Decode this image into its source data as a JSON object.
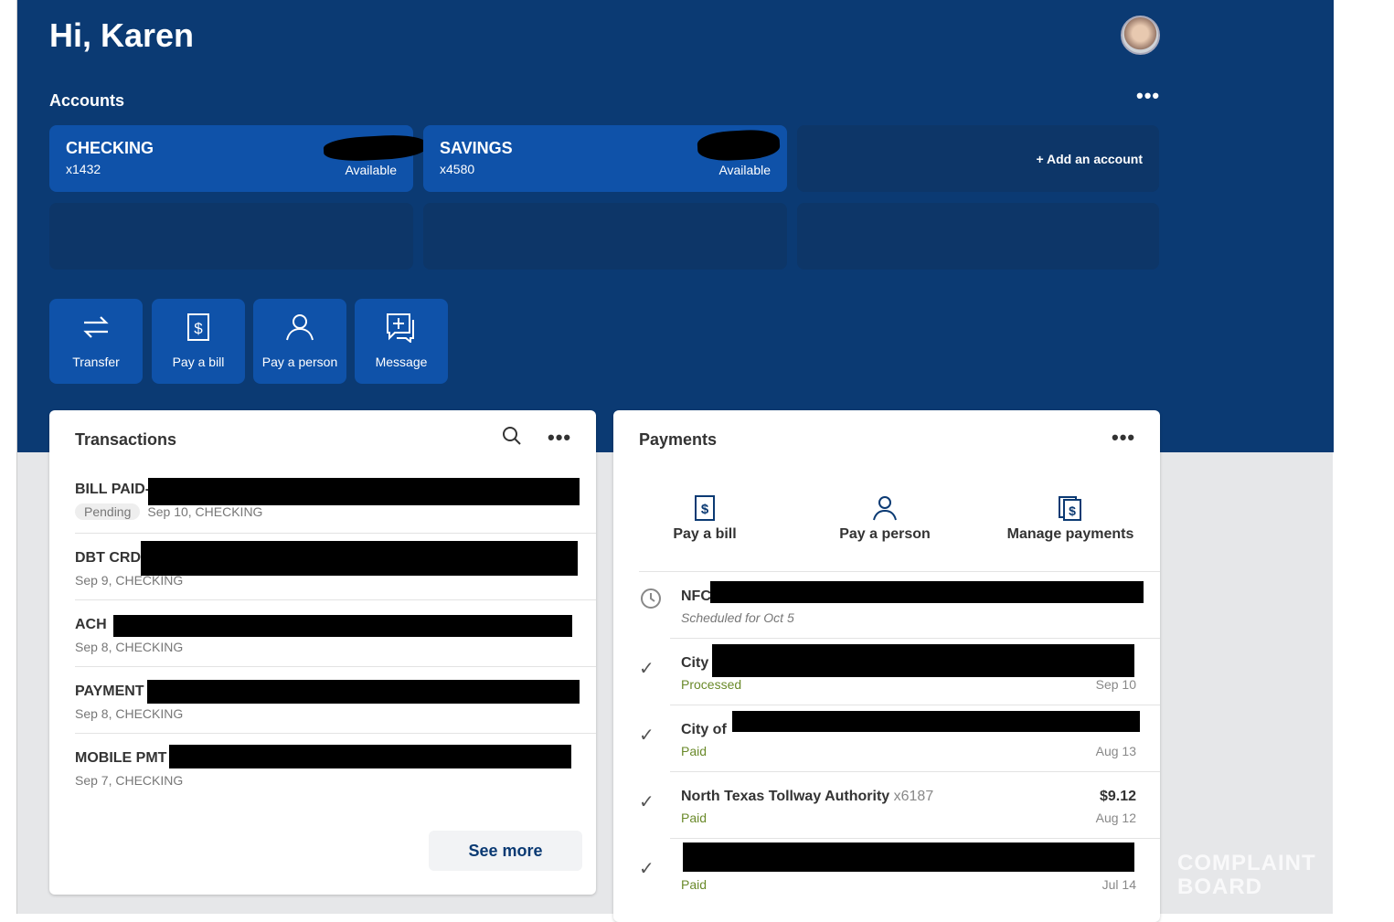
{
  "header": {
    "greeting": "Hi, Karen"
  },
  "accounts": {
    "title": "Accounts",
    "items": [
      {
        "name": "CHECKING",
        "number": "x1432",
        "balance_label": "Available"
      },
      {
        "name": "SAVINGS",
        "number": "x4580",
        "balance_label": "Available"
      }
    ],
    "add_label": "+ Add an account"
  },
  "actions": [
    {
      "label": "Transfer",
      "icon": "transfer-icon"
    },
    {
      "label": "Pay a bill",
      "icon": "bill-icon"
    },
    {
      "label": "Pay a person",
      "icon": "person-icon"
    },
    {
      "label": "Message",
      "icon": "message-icon"
    }
  ],
  "transactions": {
    "title": "Transactions",
    "items": [
      {
        "title": "BILL PAID-",
        "badge": "Pending",
        "sub": "Sep 10, CHECKING"
      },
      {
        "title": "DBT CRD",
        "sub": "Sep 9, CHECKING"
      },
      {
        "title": "ACH",
        "sub": "Sep 8, CHECKING"
      },
      {
        "title": "PAYMENT",
        "sub": "Sep 8, CHECKING"
      },
      {
        "title": "MOBILE PMT",
        "sub": "Sep 7, CHECKING"
      }
    ],
    "see_more": "See more"
  },
  "payments": {
    "title": "Payments",
    "quick": [
      {
        "label": "Pay a bill"
      },
      {
        "label": "Pay a person"
      },
      {
        "label": "Manage payments"
      }
    ],
    "items": [
      {
        "title": "NFC",
        "status": "Scheduled for Oct 5",
        "icon": "clock-icon"
      },
      {
        "title": "City",
        "status": "Processed",
        "date": "Sep 10",
        "icon": "check-icon"
      },
      {
        "title": "City of",
        "status": "Paid",
        "date": "Aug 13",
        "icon": "check-icon"
      },
      {
        "title": "North Texas Tollway Authority",
        "account": "x6187",
        "amount": "$9.12",
        "status": "Paid",
        "date": "Aug 12",
        "icon": "check-icon"
      },
      {
        "title": "",
        "status": "Paid",
        "date": "Jul 14",
        "icon": "check-icon"
      }
    ]
  },
  "watermark": "COMPLAINT BOARD",
  "colors": {
    "hero": "#0b3a73",
    "card": "#0f52a9",
    "paid": "#6a8a2a"
  }
}
